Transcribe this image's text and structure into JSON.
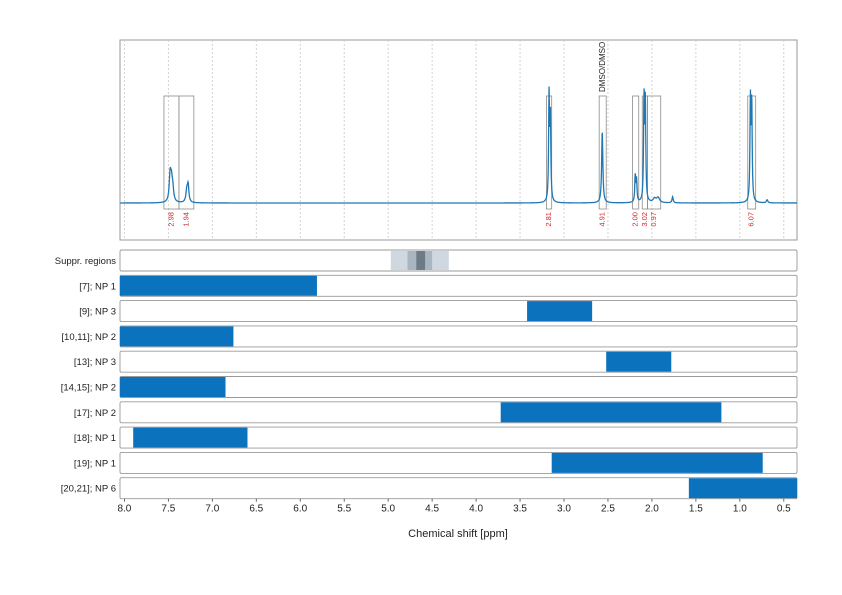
{
  "chart_data": {
    "type": "line",
    "xlabel": "Chemical shift [ppm]",
    "xlim": [
      8.05,
      0.35
    ],
    "x_ticks": [
      "8.0",
      "7.5",
      "7.0",
      "6.5",
      "6.0",
      "5.5",
      "5.0",
      "4.5",
      "4.0",
      "3.5",
      "3.0",
      "2.5",
      "2.0",
      "1.5",
      "1.0",
      "0.5"
    ],
    "x_tick_values": [
      8.0,
      7.5,
      7.0,
      6.5,
      6.0,
      5.5,
      5.0,
      4.5,
      4.0,
      3.5,
      3.0,
      2.5,
      2.0,
      1.5,
      1.0,
      0.5
    ],
    "grid": true,
    "spectrum": {
      "color": "#1f77b4",
      "peaks": [
        {
          "ppm": 7.48,
          "height": 0.26,
          "width": 0.012
        },
        {
          "ppm": 7.465,
          "height": 0.18,
          "width": 0.012
        },
        {
          "ppm": 7.45,
          "height": 0.12,
          "width": 0.012
        },
        {
          "ppm": 7.29,
          "height": 0.12,
          "width": 0.012
        },
        {
          "ppm": 7.275,
          "height": 0.16,
          "width": 0.01
        },
        {
          "ppm": 3.17,
          "height": 1.05,
          "width": 0.006
        },
        {
          "ppm": 3.155,
          "height": 0.85,
          "width": 0.006
        },
        {
          "ppm": 2.565,
          "height": 0.72,
          "width": 0.008
        },
        {
          "ppm": 2.19,
          "height": 0.27,
          "width": 0.006
        },
        {
          "ppm": 2.175,
          "height": 0.22,
          "width": 0.006
        },
        {
          "ppm": 2.09,
          "height": 1.02,
          "width": 0.006
        },
        {
          "ppm": 2.075,
          "height": 0.98,
          "width": 0.006
        },
        {
          "ppm": 1.97,
          "height": 0.04,
          "width": 0.02
        },
        {
          "ppm": 1.93,
          "height": 0.05,
          "width": 0.02
        },
        {
          "ppm": 1.765,
          "height": 0.06,
          "width": 0.008
        },
        {
          "ppm": 0.88,
          "height": 1.0,
          "width": 0.006
        },
        {
          "ppm": 0.865,
          "height": 0.98,
          "width": 0.006
        },
        {
          "ppm": 0.69,
          "height": 0.03,
          "width": 0.01
        }
      ]
    },
    "integration_regions": [
      {
        "start": 7.55,
        "end": 7.38,
        "label": "2.98"
      },
      {
        "start": 7.38,
        "end": 7.21,
        "label": "1.94"
      },
      {
        "start": 3.2,
        "end": 3.14,
        "label": "2.81"
      },
      {
        "start": 2.6,
        "end": 2.52,
        "label": "4.91",
        "annotation": "DMSO/DMSO"
      },
      {
        "start": 2.22,
        "end": 2.15,
        "label": "2.00"
      },
      {
        "start": 2.11,
        "end": 2.05,
        "label": "3.02"
      },
      {
        "start": 2.05,
        "end": 1.9,
        "label": "0.97"
      },
      {
        "start": 0.91,
        "end": 0.82,
        "label": "6.07"
      }
    ],
    "suppressed_regions": {
      "label": "Suppr. regions",
      "bands": [
        {
          "start": 4.97,
          "end": 4.31,
          "shade": "#cfd8e0"
        },
        {
          "start": 4.78,
          "end": 4.5,
          "shade": "#a9b6c1"
        },
        {
          "start": 4.68,
          "end": 4.58,
          "shade": "#6d7b86"
        }
      ]
    },
    "range_tracks": [
      {
        "label": "[7]; NP 1",
        "start": 8.05,
        "end": 5.81
      },
      {
        "label": "[9]; NP 3",
        "start": 3.42,
        "end": 2.68
      },
      {
        "label": "[10,11]; NP 2",
        "start": 8.05,
        "end": 6.76
      },
      {
        "label": "[13]; NP 3",
        "start": 2.52,
        "end": 1.78
      },
      {
        "label": "[14,15]; NP 2",
        "start": 8.05,
        "end": 6.85
      },
      {
        "label": "[17]; NP 2",
        "start": 3.72,
        "end": 1.21
      },
      {
        "label": "[18]; NP 1",
        "start": 7.9,
        "end": 6.6
      },
      {
        "label": "[19]; NP 1",
        "start": 3.14,
        "end": 0.74
      },
      {
        "label": "[20,21]; NP 6",
        "start": 1.58,
        "end": 0.35
      }
    ],
    "bar_color": "#0b72bd"
  }
}
